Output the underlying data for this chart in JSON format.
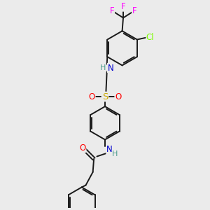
{
  "background_color": "#EBEBEB",
  "bond_color": "#1a1a1a",
  "atom_colors": {
    "N": "#0000CC",
    "H": "#4a9a8a",
    "O": "#FF0000",
    "S": "#ccaa00",
    "F": "#FF00FF",
    "Cl": "#7CFC00"
  },
  "lw": 1.4,
  "fs": 8.5
}
